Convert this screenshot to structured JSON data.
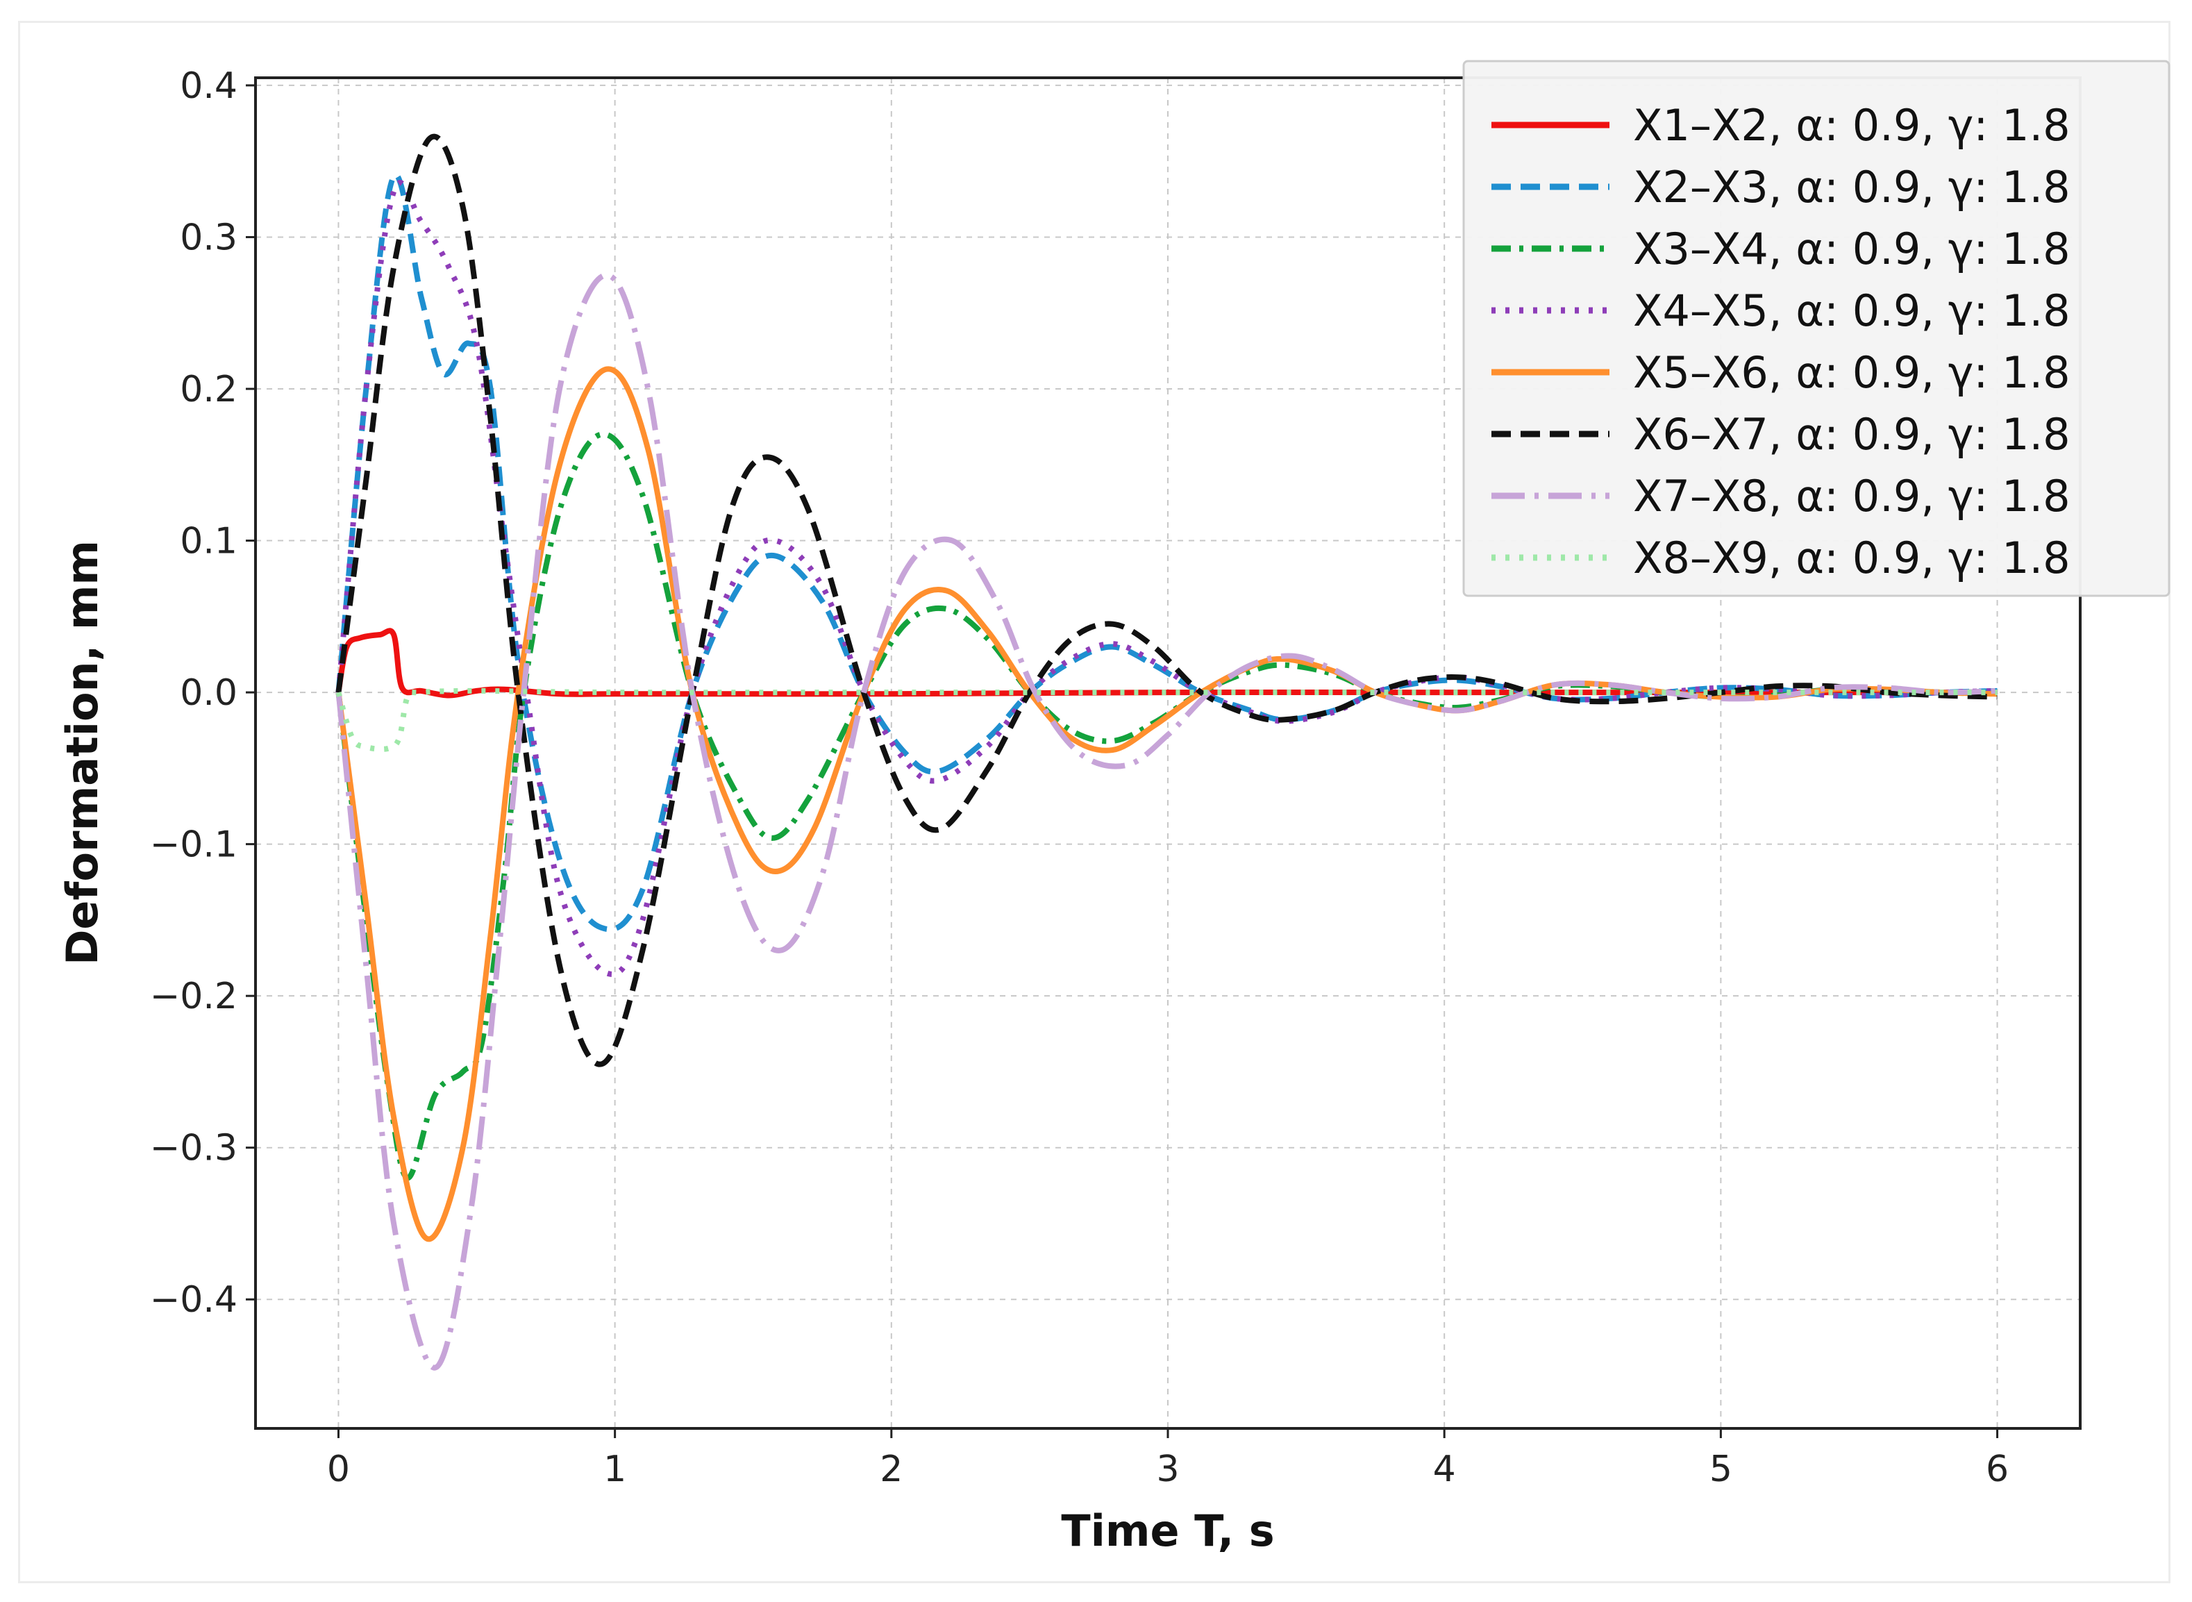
{
  "chart_data": {
    "type": "line",
    "title": "",
    "xlabel": "Time T, s",
    "ylabel": "Deformation, mm",
    "xlim": [
      -0.3,
      6.3
    ],
    "ylim": [
      -0.485,
      0.405
    ],
    "xticks": [
      0,
      1,
      2,
      3,
      4,
      5,
      6
    ],
    "xtick_labels": [
      "0",
      "1",
      "2",
      "3",
      "4",
      "5",
      "6"
    ],
    "yticks": [
      -0.4,
      -0.3,
      -0.2,
      -0.1,
      0.0,
      0.1,
      0.2,
      0.3,
      0.4
    ],
    "ytick_labels": [
      "−0.4",
      "−0.3",
      "−0.2",
      "−0.1",
      "0.0",
      "0.1",
      "0.2",
      "0.3",
      "0.4"
    ],
    "grid": true,
    "legend": "top-right",
    "series": [
      {
        "name": "X1–X2, α: 0.9, γ: 1.8",
        "color": "#ee1111",
        "dash": "solid",
        "x": [
          0,
          0.03,
          0.08,
          0.15,
          0.2,
          0.23,
          0.3,
          0.4,
          0.5,
          0.6,
          0.8,
          1.0,
          1.5,
          2.0,
          3.0,
          4.0,
          5.0,
          6.0
        ],
        "y": [
          0,
          0.03,
          0.036,
          0.038,
          0.038,
          0.003,
          0.001,
          -0.002,
          0.001,
          0.002,
          -0.001,
          -0.001,
          -0.001,
          -0.001,
          0,
          0,
          0,
          0
        ]
      },
      {
        "name": "X2–X3, α: 0.9, γ: 1.8",
        "color": "#1f8fd0",
        "dash": "dashed",
        "x": [
          0,
          0.1,
          0.2,
          0.3,
          0.38,
          0.47,
          0.55,
          0.65,
          0.8,
          0.95,
          1.1,
          1.28,
          1.45,
          1.58,
          1.75,
          1.9,
          2.05,
          2.17,
          2.35,
          2.5,
          2.65,
          2.8,
          2.95,
          3.12,
          3.3,
          3.42,
          3.6,
          3.75,
          3.9,
          4.05,
          4.2,
          4.4,
          4.6,
          4.8,
          5.0,
          5.2,
          5.4,
          5.6,
          5.8,
          6.0
        ],
        "y": [
          0,
          0.2,
          0.34,
          0.26,
          0.21,
          0.23,
          0.2,
          0.02,
          -0.11,
          -0.155,
          -0.13,
          0,
          0.07,
          0.09,
          0.06,
          0,
          -0.04,
          -0.052,
          -0.03,
          0,
          0.02,
          0.03,
          0.018,
          0,
          -0.012,
          -0.018,
          -0.012,
          0,
          0.006,
          0.008,
          0.004,
          -0.004,
          -0.004,
          0,
          0.003,
          0.002,
          -0.002,
          -0.002,
          0,
          0.001
        ]
      },
      {
        "name": "X3–X4, α: 0.9, γ: 1.8",
        "color": "#14a23c",
        "dash": "dashdot",
        "x": [
          0,
          0.1,
          0.18,
          0.25,
          0.35,
          0.45,
          0.52,
          0.6,
          0.67,
          0.8,
          0.95,
          1.1,
          1.28,
          1.45,
          1.57,
          1.7,
          1.9,
          2.05,
          2.2,
          2.35,
          2.5,
          2.65,
          2.8,
          2.95,
          3.12,
          3.3,
          3.42,
          3.6,
          3.75,
          3.9,
          4.05,
          4.2,
          4.4,
          4.6,
          4.8,
          5.0,
          5.2,
          5.4,
          5.6,
          5.8,
          6.0
        ],
        "y": [
          0,
          -0.15,
          -0.26,
          -0.32,
          -0.265,
          -0.25,
          -0.23,
          -0.12,
          0,
          0.12,
          0.17,
          0.13,
          0,
          -0.07,
          -0.096,
          -0.07,
          0,
          0.045,
          0.055,
          0.035,
          0,
          -0.025,
          -0.032,
          -0.02,
          0,
          0.014,
          0.018,
          0.012,
          0,
          -0.007,
          -0.01,
          -0.005,
          0.004,
          0.004,
          0,
          -0.003,
          -0.002,
          0.002,
          0.002,
          0,
          -0.001
        ]
      },
      {
        "name": "X4–X5, α: 0.9, γ: 1.8",
        "color": "#8e3db8",
        "dash": "dotted",
        "x": [
          0,
          0.1,
          0.2,
          0.3,
          0.4,
          0.5,
          0.6,
          0.68,
          0.8,
          0.97,
          1.1,
          1.28,
          1.45,
          1.58,
          1.75,
          1.9,
          2.05,
          2.17,
          2.35,
          2.5,
          2.65,
          2.8,
          2.95,
          3.12,
          3.3,
          3.42,
          3.6,
          3.75,
          3.9,
          4.05,
          4.2,
          4.4,
          4.6,
          4.8,
          5.0,
          5.2,
          5.4,
          5.6,
          5.8,
          6.0
        ],
        "y": [
          0,
          0.2,
          0.33,
          0.31,
          0.28,
          0.23,
          0.1,
          0,
          -0.13,
          -0.185,
          -0.15,
          0,
          0.08,
          0.1,
          0.07,
          0,
          -0.045,
          -0.058,
          -0.035,
          0,
          0.022,
          0.032,
          0.02,
          0,
          -0.013,
          -0.019,
          -0.013,
          0,
          0.007,
          0.01,
          0.005,
          -0.004,
          -0.004,
          0,
          0.003,
          0.002,
          -0.002,
          -0.002,
          0,
          0.001
        ]
      },
      {
        "name": "X5–X6, α: 0.9, γ: 1.8",
        "color": "#ff8f2e",
        "dash": "solid",
        "x": [
          0,
          0.1,
          0.2,
          0.32,
          0.45,
          0.55,
          0.65,
          0.8,
          0.97,
          1.12,
          1.28,
          1.45,
          1.58,
          1.72,
          1.9,
          2.05,
          2.2,
          2.35,
          2.5,
          2.65,
          2.8,
          2.95,
          3.12,
          3.3,
          3.42,
          3.6,
          3.75,
          3.9,
          4.05,
          4.2,
          4.4,
          4.6,
          4.8,
          5.0,
          5.2,
          5.4,
          5.6,
          5.8,
          6.0
        ],
        "y": [
          0,
          -0.14,
          -0.28,
          -0.36,
          -0.3,
          -0.16,
          0,
          0.15,
          0.213,
          0.16,
          0,
          -0.09,
          -0.118,
          -0.09,
          0,
          0.055,
          0.067,
          0.04,
          0,
          -0.03,
          -0.038,
          -0.022,
          0,
          0.017,
          0.022,
          0.014,
          0,
          -0.008,
          -0.012,
          -0.006,
          0.005,
          0.005,
          0,
          -0.003,
          -0.003,
          0.002,
          0.002,
          0,
          -0.001
        ]
      },
      {
        "name": "X6–X7, α: 0.9, γ: 1.8",
        "color": "#111111",
        "dash": "dashed",
        "x": [
          0,
          0.1,
          0.2,
          0.33,
          0.45,
          0.55,
          0.65,
          0.8,
          0.95,
          1.1,
          1.28,
          1.42,
          1.55,
          1.7,
          1.9,
          2.05,
          2.18,
          2.35,
          2.5,
          2.65,
          2.8,
          2.95,
          3.12,
          3.3,
          3.42,
          3.6,
          3.75,
          3.9,
          4.05,
          4.2,
          4.4,
          4.6,
          4.8,
          5.0,
          5.2,
          5.4,
          5.6,
          5.8,
          6.0
        ],
        "y": [
          0,
          0.14,
          0.28,
          0.365,
          0.32,
          0.18,
          0,
          -0.18,
          -0.245,
          -0.17,
          0,
          0.12,
          0.155,
          0.12,
          0,
          -0.07,
          -0.09,
          -0.05,
          0,
          0.035,
          0.045,
          0.03,
          0,
          -0.015,
          -0.018,
          -0.012,
          0,
          0.008,
          0.01,
          0.006,
          -0.004,
          -0.006,
          -0.004,
          0,
          0.004,
          0.004,
          0,
          -0.002,
          -0.003
        ]
      },
      {
        "name": "X7–X8, α: 0.9, γ: 1.8",
        "color": "#c7a4d8",
        "dash": "longdashdot",
        "x": [
          0,
          0.1,
          0.2,
          0.35,
          0.48,
          0.58,
          0.67,
          0.8,
          0.97,
          1.12,
          1.28,
          1.45,
          1.6,
          1.75,
          1.9,
          2.05,
          2.22,
          2.38,
          2.52,
          2.68,
          2.85,
          3.0,
          3.15,
          3.3,
          3.45,
          3.6,
          3.75,
          3.9,
          4.05,
          4.2,
          4.4,
          4.6,
          4.8,
          5.0,
          5.2,
          5.4,
          5.6,
          5.8,
          6.0
        ],
        "y": [
          0,
          -0.18,
          -0.35,
          -0.445,
          -0.34,
          -0.17,
          0,
          0.2,
          0.275,
          0.2,
          0,
          -0.13,
          -0.17,
          -0.12,
          0,
          0.08,
          0.1,
          0.06,
          0,
          -0.04,
          -0.048,
          -0.028,
          0,
          0.018,
          0.024,
          0.015,
          0,
          -0.008,
          -0.012,
          -0.006,
          0.005,
          0.005,
          0,
          -0.004,
          -0.003,
          0.003,
          0.003,
          0,
          0.001
        ]
      },
      {
        "name": "X8–X9, α: 0.9, γ: 1.8",
        "color": "#9ee8a8",
        "dash": "dotted",
        "x": [
          0,
          0.05,
          0.1,
          0.18,
          0.22,
          0.25,
          0.3,
          0.5,
          1.0,
          2.0,
          3.0,
          4.0,
          5.0,
          6.0
        ],
        "y": [
          0,
          -0.03,
          -0.036,
          -0.037,
          -0.03,
          -0.003,
          0,
          0.001,
          0,
          0,
          0,
          0,
          0,
          0
        ]
      }
    ]
  }
}
